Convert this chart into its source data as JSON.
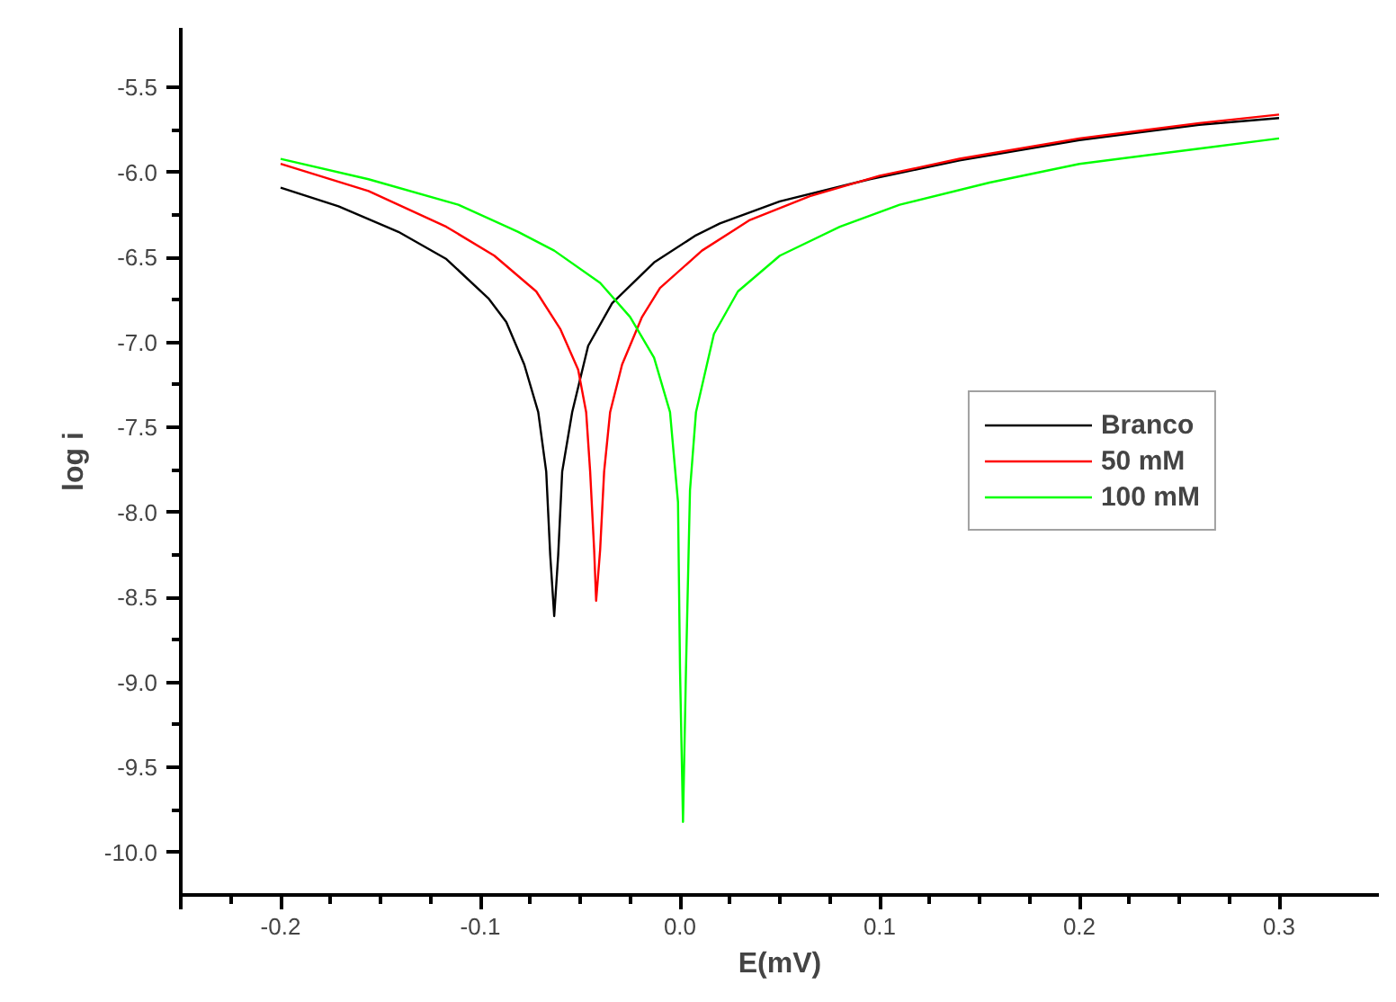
{
  "chart_data": {
    "type": "line",
    "xlabel": "E(mV)",
    "ylabel": "log i",
    "xlim": [
      -0.25,
      0.35
    ],
    "xticks": [
      {
        "value": -0.25,
        "label": null
      },
      -0.2,
      -0.1,
      {
        "value": 0,
        "label": "0.0"
      },
      0.1,
      0.2,
      0.3
    ],
    "ylim": [
      -10.25,
      -5.15
    ],
    "yticks": [
      -5.5,
      {
        "value": -6,
        "label": "-6.0"
      },
      -6.5,
      {
        "value": -7,
        "label": "-7.0"
      },
      -7.5,
      {
        "value": -8,
        "label": "-8.0"
      },
      -8.5,
      {
        "value": -9,
        "label": "-9.0"
      },
      -9.5,
      {
        "value": -10,
        "label": "-10.0"
      }
    ],
    "grid": false,
    "legend": "right",
    "marker": "none",
    "line_style": "solid",
    "series": [
      {
        "name": "Branco",
        "color": "#000000",
        "x": [
          -0.2,
          -0.171,
          -0.141,
          -0.117,
          -0.096,
          -0.087,
          -0.078,
          -0.071,
          -0.067,
          -0.065,
          -0.063,
          -0.061,
          -0.059,
          -0.054,
          -0.046,
          -0.034,
          -0.013,
          0.008,
          0.02,
          0.05,
          0.095,
          0.14,
          0.2,
          0.26,
          0.3
        ],
        "values": [
          -6.09,
          -6.2,
          -6.35,
          -6.51,
          -6.74,
          -6.88,
          -7.13,
          -7.41,
          -7.76,
          -8.25,
          -8.61,
          -8.25,
          -7.76,
          -7.41,
          -7.02,
          -6.77,
          -6.53,
          -6.37,
          -6.3,
          -6.17,
          -6.04,
          -5.93,
          -5.81,
          -5.72,
          -5.68
        ]
      },
      {
        "name": "50 mM",
        "color": "#ff0000",
        "x": [
          -0.2,
          -0.156,
          -0.117,
          -0.093,
          -0.072,
          -0.06,
          -0.051,
          -0.047,
          -0.045,
          -0.043,
          -0.042,
          -0.04,
          -0.038,
          -0.035,
          -0.029,
          -0.019,
          -0.01,
          0.011,
          0.035,
          0.065,
          0.1,
          0.14,
          0.2,
          0.26,
          0.3
        ],
        "values": [
          -5.95,
          -6.11,
          -6.32,
          -6.49,
          -6.7,
          -6.92,
          -7.16,
          -7.41,
          -7.76,
          -8.22,
          -8.52,
          -8.22,
          -7.76,
          -7.41,
          -7.13,
          -6.85,
          -6.68,
          -6.46,
          -6.28,
          -6.14,
          -6.02,
          -5.92,
          -5.8,
          -5.71,
          -5.66
        ]
      },
      {
        "name": "100 mM",
        "color": "#00ff00",
        "x": [
          -0.2,
          -0.156,
          -0.111,
          -0.081,
          -0.063,
          -0.04,
          -0.025,
          -0.013,
          -0.005,
          -0.001,
          0.0,
          0.0015,
          0.003,
          0.005,
          0.008,
          0.017,
          0.029,
          0.05,
          0.08,
          0.11,
          0.155,
          0.2,
          0.26,
          0.3
        ],
        "values": [
          -5.92,
          -6.04,
          -6.19,
          -6.35,
          -6.46,
          -6.65,
          -6.85,
          -7.09,
          -7.41,
          -7.94,
          -8.92,
          -9.82,
          -8.92,
          -7.87,
          -7.41,
          -6.95,
          -6.7,
          -6.49,
          -6.32,
          -6.19,
          -6.06,
          -5.95,
          -5.86,
          -5.8
        ]
      }
    ]
  }
}
